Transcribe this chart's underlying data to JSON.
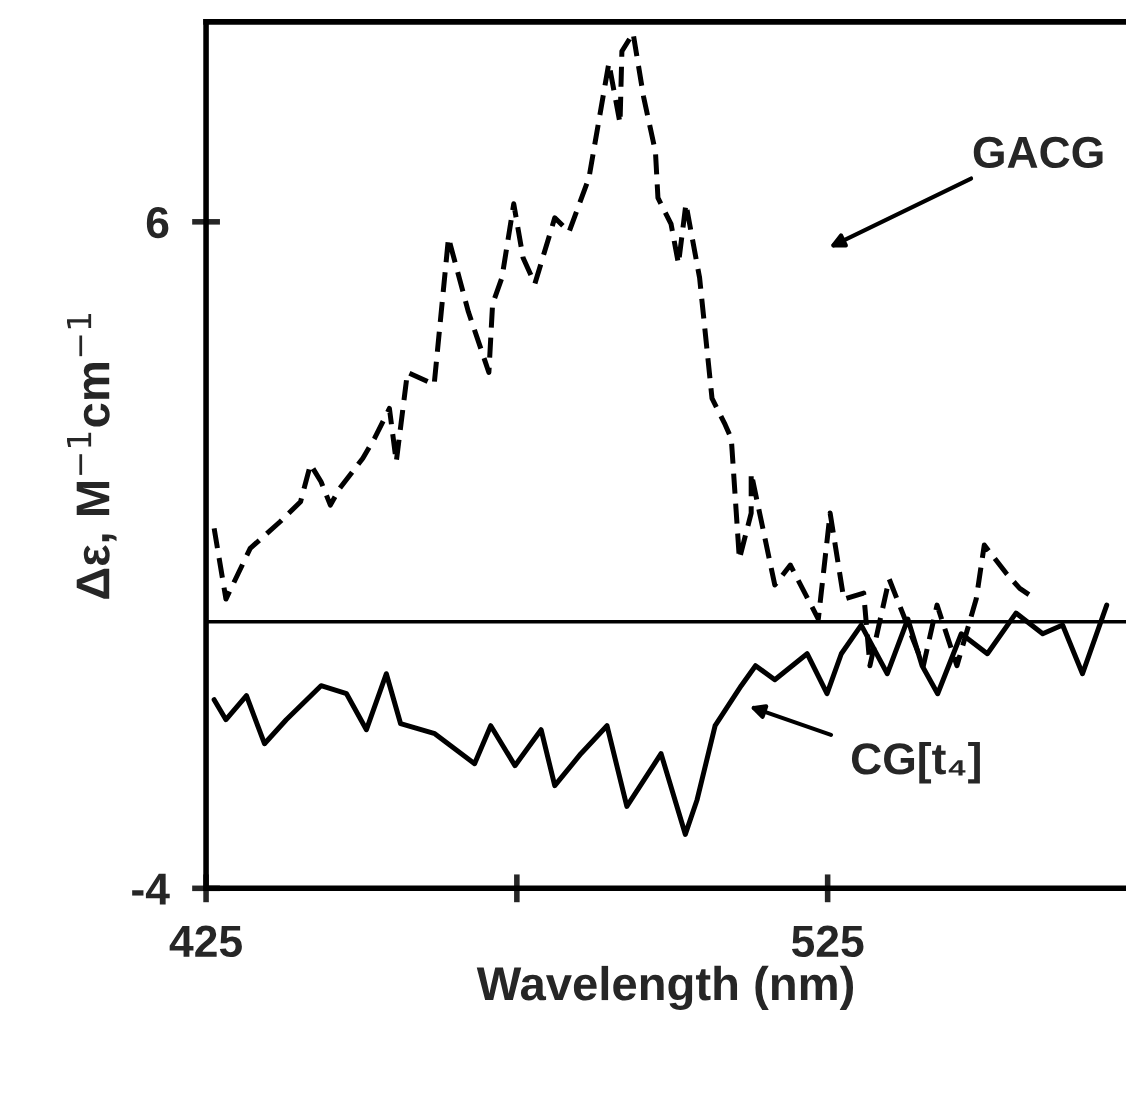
{
  "chart_data": {
    "type": "line",
    "xlabel": "Wavelength (nm)",
    "ylabel": "Δε, M$^{−1}$cm$^{−1}$",
    "xlim": [
      425,
      573
    ],
    "ylim": [
      -4,
      9
    ],
    "xticks": [
      425,
      {
        "value": 475,
        "label": null
      },
      525
    ],
    "yticks": [
      -4,
      6
    ],
    "grid": false,
    "legend": false,
    "ref_lines": [
      {
        "axis": "y",
        "value": 0,
        "color": "#000000",
        "line_style": "solid"
      }
    ],
    "annotations": [
      "GACG",
      "CG[t₄]"
    ],
    "series": [
      {
        "color": "#000000",
        "line_style": "dashed",
        "x": [
          426.3,
          428.2,
          432.1,
          436.9,
          440.2,
          441.8,
          443.5,
          445.0,
          446.5,
          450.2,
          452.1,
          454.5,
          455.6,
          457.4,
          461.7,
          464.0,
          467.2,
          470.5,
          471.1,
          472.6,
          474.5,
          476.0,
          477.9,
          481.1,
          483.4,
          486.6,
          489.8,
          491.6,
          491.9,
          493.7,
          495.4,
          497.3,
          497.7,
          499.8,
          501.0,
          502.2,
          504.4,
          506.4,
          508.5,
          509.5,
          510.8,
          512.7,
          512.7,
          516.5,
          519.0,
          523.5,
          525.4,
          527.6,
          530.8,
          531.8,
          534.9,
          540.4,
          542.6,
          545.8,
          548.9,
          550.2,
          553.7,
          555.9,
          557.5
        ],
        "values": [
          1.4,
          0.34,
          1.1,
          1.5,
          1.8,
          2.36,
          2.1,
          1.75,
          2.0,
          2.45,
          2.75,
          3.2,
          2.4,
          3.74,
          3.56,
          5.76,
          4.65,
          3.74,
          4.77,
          5.16,
          6.27,
          5.46,
          5.07,
          6.06,
          5.85,
          6.66,
          8.38,
          7.48,
          8.56,
          8.83,
          7.87,
          7.05,
          6.36,
          5.97,
          5.37,
          6.27,
          5.16,
          3.35,
          2.96,
          2.75,
          0.94,
          1.63,
          2.23,
          0.55,
          0.85,
          0.04,
          1.63,
          0.34,
          0.43,
          -0.66,
          0.64,
          -0.66,
          0.25,
          -0.66,
          0.34,
          1.15,
          0.73,
          0.5,
          0.4
        ]
      },
      {
        "color": "#000000",
        "line_style": "solid",
        "x": [
          426.3,
          428.2,
          431.5,
          434.4,
          437.9,
          443.5,
          447.6,
          450.8,
          454.0,
          456.3,
          461.8,
          468.2,
          470.8,
          474.7,
          478.9,
          481.1,
          485.3,
          489.5,
          492.7,
          498.2,
          502.1,
          504.0,
          506.9,
          511.1,
          513.4,
          516.5,
          521.7,
          524.9,
          527.2,
          530.4,
          534.6,
          537.9,
          540.2,
          542.7,
          546.5,
          550.7,
          555.3,
          559.6,
          562.8,
          566.0,
          569.9
        ],
        "values": [
          -1.17,
          -1.47,
          -1.11,
          -1.83,
          -1.47,
          -0.96,
          -1.08,
          -1.62,
          -0.78,
          -1.53,
          -1.68,
          -2.13,
          -1.56,
          -2.16,
          -1.62,
          -2.46,
          -1.98,
          -1.56,
          -2.77,
          -1.98,
          -3.19,
          -2.67,
          -1.56,
          -0.96,
          -0.66,
          -0.87,
          -0.48,
          -1.08,
          -0.48,
          -0.05,
          -0.78,
          0.04,
          -0.66,
          -1.08,
          -0.18,
          -0.48,
          0.13,
          -0.18,
          -0.05,
          -0.78,
          0.25
        ]
      }
    ]
  }
}
